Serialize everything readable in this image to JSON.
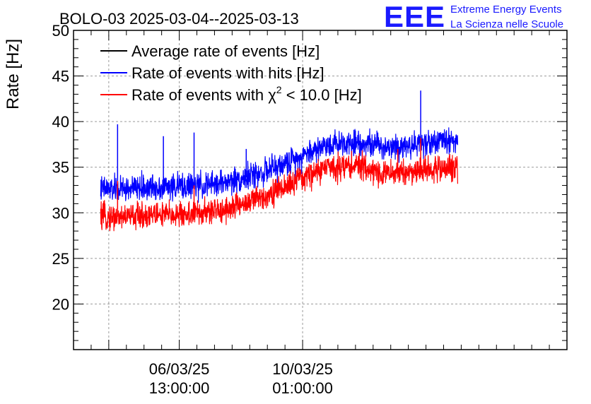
{
  "chart_data": {
    "type": "line",
    "title": "BOLO-03 2025-03-04--2025-03-13",
    "ylabel": "Rate [Hz]",
    "xlabel": "",
    "ylim": [
      15,
      50
    ],
    "xlim": [
      -3.0,
      11.0
    ],
    "x_unit": "days since 06/03/25 13:00:00",
    "grid": true,
    "legend_position": "top-left",
    "y_ticks": [
      20,
      25,
      30,
      35,
      40,
      45,
      50
    ],
    "y_tick_labels": [
      "20",
      "25",
      "30",
      "35",
      "40",
      "45",
      "50"
    ],
    "x_ticks": [
      0,
      3.5
    ],
    "x_tick_labels": [
      {
        "date": "06/03/25",
        "time": "13:00:00"
      },
      {
        "date": "10/03/25",
        "time": "01:00:00"
      }
    ],
    "x_data_start": -2.23,
    "x_data_end": 7.9,
    "series": [
      {
        "name": "Average rate of events [Hz]",
        "legend_label": "Average rate of events [Hz]",
        "color": "#000000",
        "drawn": false,
        "x": [],
        "values": []
      },
      {
        "name": "Rate of events with hits [Hz]",
        "legend_label": "Rate of events with hits [Hz]",
        "color": "#0000ff",
        "x": [
          -2.2,
          -1.5,
          -0.8,
          0.0,
          0.8,
          1.5,
          2.2,
          2.8,
          3.5,
          4.2,
          5.0,
          5.8,
          6.5,
          7.2,
          7.9
        ],
        "values": [
          32.6,
          32.6,
          32.8,
          32.9,
          33.0,
          33.5,
          34.2,
          35.0,
          36.3,
          37.5,
          37.8,
          37.3,
          37.4,
          37.8,
          38.0
        ],
        "noise_amplitude": 0.7,
        "spikes": [
          {
            "x": -1.75,
            "y": 39.7
          },
          {
            "x": -0.45,
            "y": 38.4
          },
          {
            "x": 0.42,
            "y": 38.8
          },
          {
            "x": 1.9,
            "y": 37.0
          },
          {
            "x": 6.85,
            "y": 43.4
          }
        ]
      },
      {
        "name": "Rate of events with chi2 < 10.0 [Hz]",
        "legend_label": "Rate of events with",
        "legend_suffix": "< 10.0 [Hz]",
        "color": "#ff0000",
        "x": [
          -2.2,
          -1.5,
          -0.8,
          0.0,
          0.8,
          1.5,
          2.2,
          2.8,
          3.5,
          4.2,
          5.0,
          5.8,
          6.5,
          7.2,
          7.9
        ],
        "values": [
          29.5,
          29.6,
          29.8,
          29.8,
          30.0,
          30.6,
          31.5,
          32.5,
          33.8,
          35.0,
          35.2,
          34.3,
          34.5,
          34.8,
          35.0
        ],
        "noise_amplitude": 0.7,
        "spikes": [
          {
            "x": -1.75,
            "y": 33.5
          },
          {
            "x": 0.42,
            "y": 33.0
          },
          {
            "x": 6.2,
            "y": 37.0
          },
          {
            "x": 6.85,
            "y": 38.2
          }
        ]
      }
    ]
  },
  "branding": {
    "logo_text": "EEE",
    "line1": "Extreme Energy Events",
    "line2": "La Scienza nelle Scuole",
    "logo_color": "#1a1aff"
  },
  "chi_symbol": "χ",
  "chi_exponent": "2"
}
